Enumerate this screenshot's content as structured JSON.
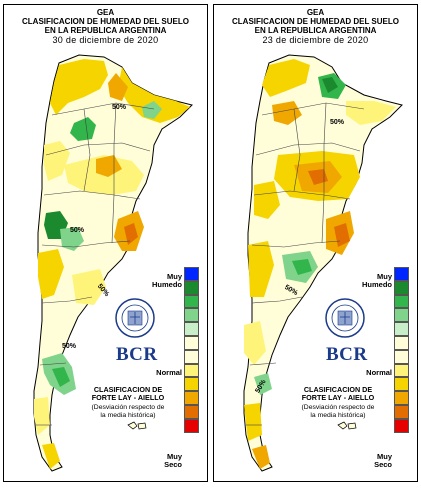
{
  "panels": [
    {
      "org": "GEA",
      "title1": "CLASIFICACION DE HUMEDAD DEL SUELO",
      "title2": "EN LA REPUBLICA ARGENTINA",
      "date": "30 de diciembre de 2020",
      "contours": [
        "50%",
        "50%",
        "50%",
        "50%"
      ]
    },
    {
      "org": "GEA",
      "title1": "CLASIFICACION DE HUMEDAD DEL SUELO",
      "title2": "EN LA REPUBLICA ARGENTINA",
      "date": "23 de diciembre de 2020",
      "contours": [
        "50%",
        "50%",
        "50%"
      ]
    }
  ],
  "legend": {
    "top_label_1": "Muy",
    "top_label_2": "Humedo",
    "mid_label": "Normal",
    "bottom_label_1": "Muy",
    "bottom_label_2": "Seco",
    "colors": [
      "#0026ff",
      "#1b8a2e",
      "#32b54a",
      "#7fd38a",
      "#c8efc8",
      "#fffed9",
      "#fffed9",
      "#fff47a",
      "#f5d400",
      "#f0a800",
      "#e26d00",
      "#e60000"
    ]
  },
  "logo": {
    "text": "BCR",
    "seal_text": "BOLSA DE COMERCIO DE ROSARIO"
  },
  "classification": {
    "line1": "CLASIFICACION DE",
    "line2": "FORTE LAY - AIELLO",
    "line3": "(Desviación respecto de",
    "line4": "la media histórica)"
  }
}
